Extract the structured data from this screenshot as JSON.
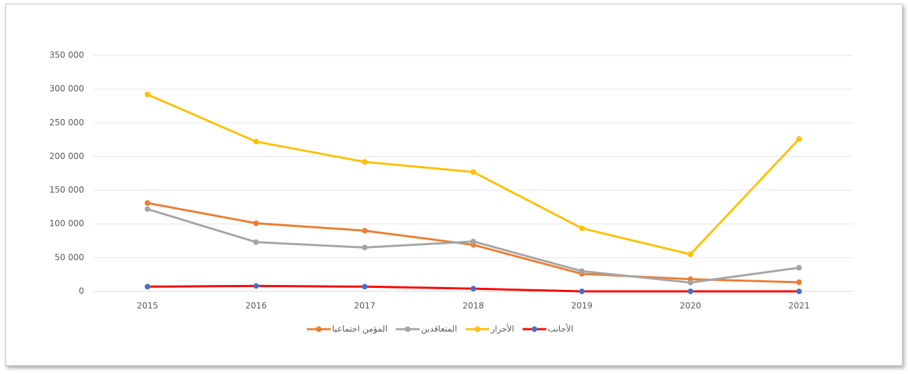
{
  "chart_data": {
    "type": "line",
    "categories": [
      "2015",
      "2016",
      "2017",
      "2018",
      "2019",
      "2020",
      "2021"
    ],
    "series": [
      {
        "name": "المؤمن اجتماعيا",
        "color": "#ed7d31",
        "values": [
          131000,
          101000,
          90000,
          69000,
          26000,
          18000,
          13500
        ]
      },
      {
        "name": "المتعاقدين",
        "color": "#a5a5a5",
        "values": [
          122000,
          73000,
          65000,
          74000,
          30000,
          13000,
          35000
        ]
      },
      {
        "name": "الأحرار",
        "color": "#ffc000",
        "values": [
          292000,
          222000,
          192000,
          177000,
          93500,
          55000,
          226000
        ]
      },
      {
        "name": "الأجانب",
        "color": "#ff0000",
        "marker_color": "#4472c4",
        "values": [
          7000,
          8000,
          7000,
          4000,
          0,
          0,
          0
        ]
      }
    ],
    "ylim": [
      0,
      350000
    ],
    "yticks": [
      0,
      {
        "value": 50000,
        "label": "50 000"
      },
      {
        "value": 100000,
        "label": "100 000"
      },
      {
        "value": 150000,
        "label": "150 000"
      },
      {
        "value": 200000,
        "label": "200 000"
      },
      {
        "value": 250000,
        "label": "250 000"
      },
      {
        "value": 300000,
        "label": "300 000"
      },
      {
        "value": 350000,
        "label": "350 000"
      }
    ],
    "grid": true,
    "legend": "bottom"
  }
}
